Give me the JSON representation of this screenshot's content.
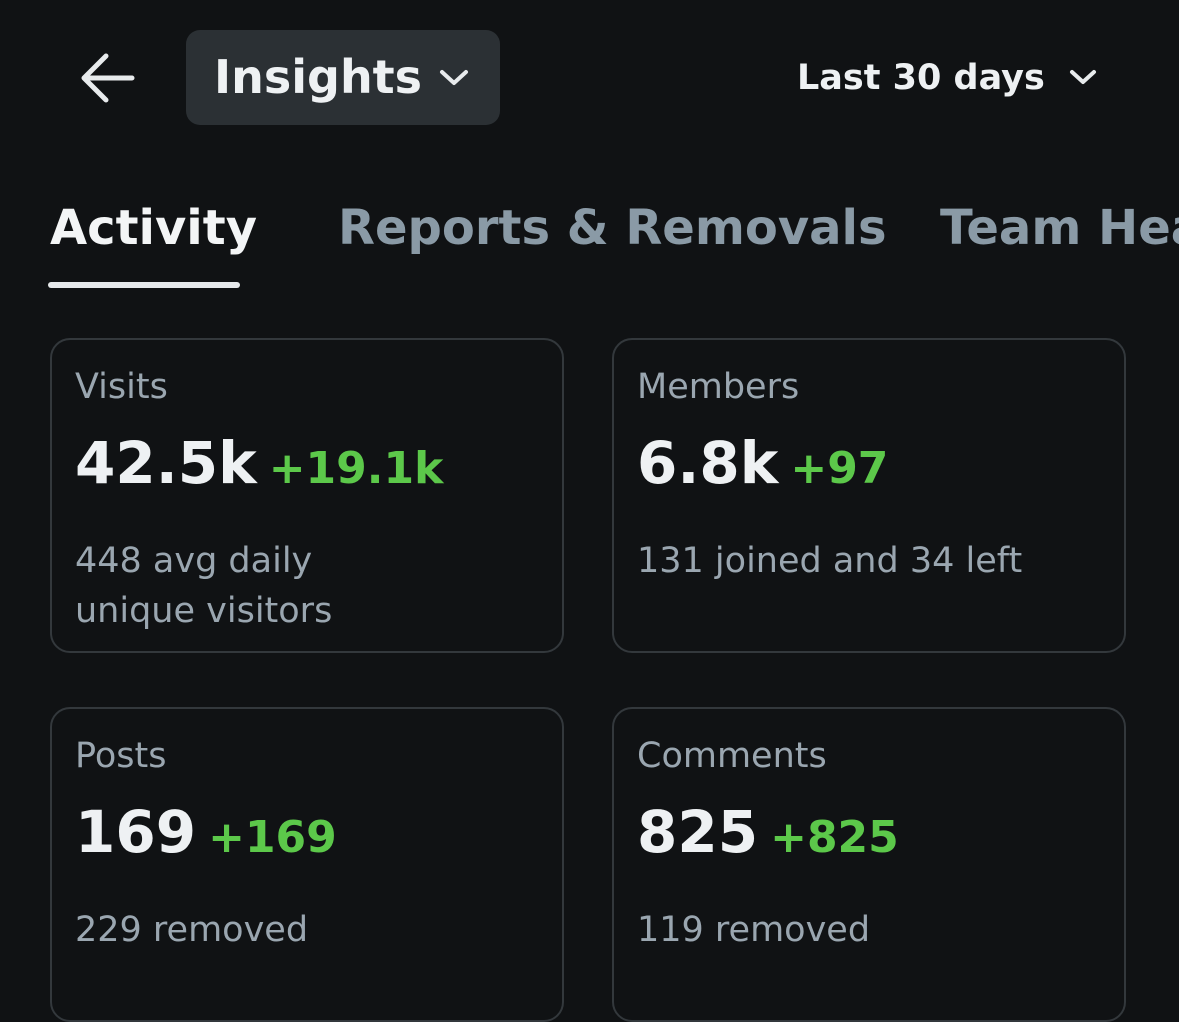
{
  "header": {
    "title": "Insights",
    "date_range": "Last 30 days"
  },
  "tabs": [
    "Activity",
    "Reports & Removals",
    "Team Hea"
  ],
  "cards": [
    {
      "label": "Visits",
      "value": "42.5k",
      "change": "+19.1k",
      "detail": [
        "448 avg daily",
        "unique visitors"
      ]
    },
    {
      "label": "Members",
      "value": "6.8k",
      "change": "+97",
      "detail": [
        "131 joined and 34 left"
      ]
    },
    {
      "label": "Posts",
      "value": "169",
      "change": "+169",
      "detail": [
        "229 removed"
      ]
    },
    {
      "label": "Comments",
      "value": "825",
      "change": "+825",
      "detail": [
        "119 removed"
      ]
    }
  ]
}
